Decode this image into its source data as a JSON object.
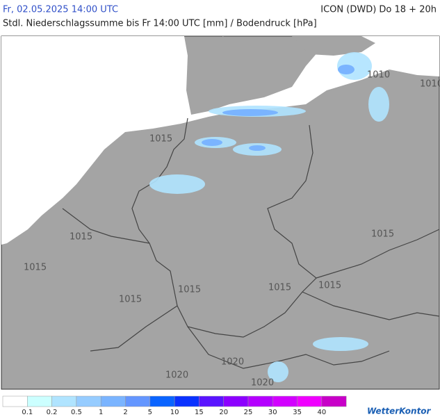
{
  "header": {
    "date": "Fr, 02.05.2025 14:00 UTC",
    "model": "ICON (DWD) Do 18 + 20h",
    "subtitle": "Stdl. Niederschlagssumme bis Fr 14:00 UTC [mm] / Bodendruck [hPa]"
  },
  "isobars": [
    "1010",
    "1010",
    "1015",
    "1015",
    "1015",
    "1015",
    "1015",
    "1015",
    "1015",
    "1015",
    "1020",
    "1020",
    "1020"
  ],
  "legend": {
    "colors": [
      "#ffffff",
      "#ccffff",
      "#b0e4ff",
      "#96ccff",
      "#7ab4ff",
      "#6496ff",
      "#0a64ff",
      "#0a32ff",
      "#5a14ff",
      "#8c00ff",
      "#b400ff",
      "#d200ff",
      "#f000ff",
      "#c800c8"
    ],
    "labels": [
      "0.1",
      "0.2",
      "0.5",
      "1",
      "2",
      "5",
      "10",
      "15",
      "20",
      "25",
      "30",
      "35",
      "40"
    ]
  },
  "logo": "WetterKontor"
}
